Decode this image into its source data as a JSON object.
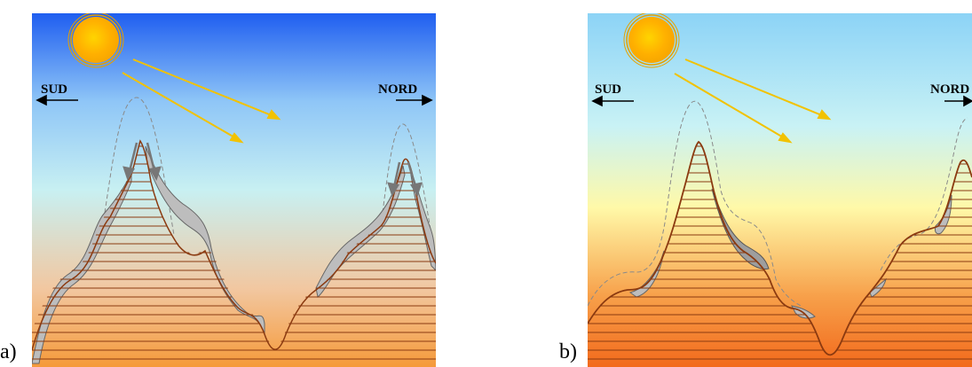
{
  "panels": [
    {
      "id": "a",
      "label": "a)",
      "south_label": "SUD",
      "north_label": "NORD",
      "sky_colors": [
        "#1f5ef0",
        "#8fc6f7",
        "#c8f0f2",
        "#f2c7a0",
        "#f59a3a"
      ]
    },
    {
      "id": "b",
      "label": "b)",
      "south_label": "SUD",
      "north_label": "NORD",
      "sky_colors": [
        "#8cd3f6",
        "#c9f2f5",
        "#fff9a8",
        "#f7a04a",
        "#f26a1c"
      ]
    }
  ],
  "colors": {
    "sun_core": "#ffd400",
    "sun_edge": "#f5a400",
    "ray": "#f2c200",
    "mountain_outline": "#8b3a10",
    "hatch": "#8b3a10",
    "snow_fill": "#bdbdbd",
    "snow_edge": "#666666",
    "dashed_profile": "#8a8a8a",
    "wind_arrow": "#777777"
  }
}
